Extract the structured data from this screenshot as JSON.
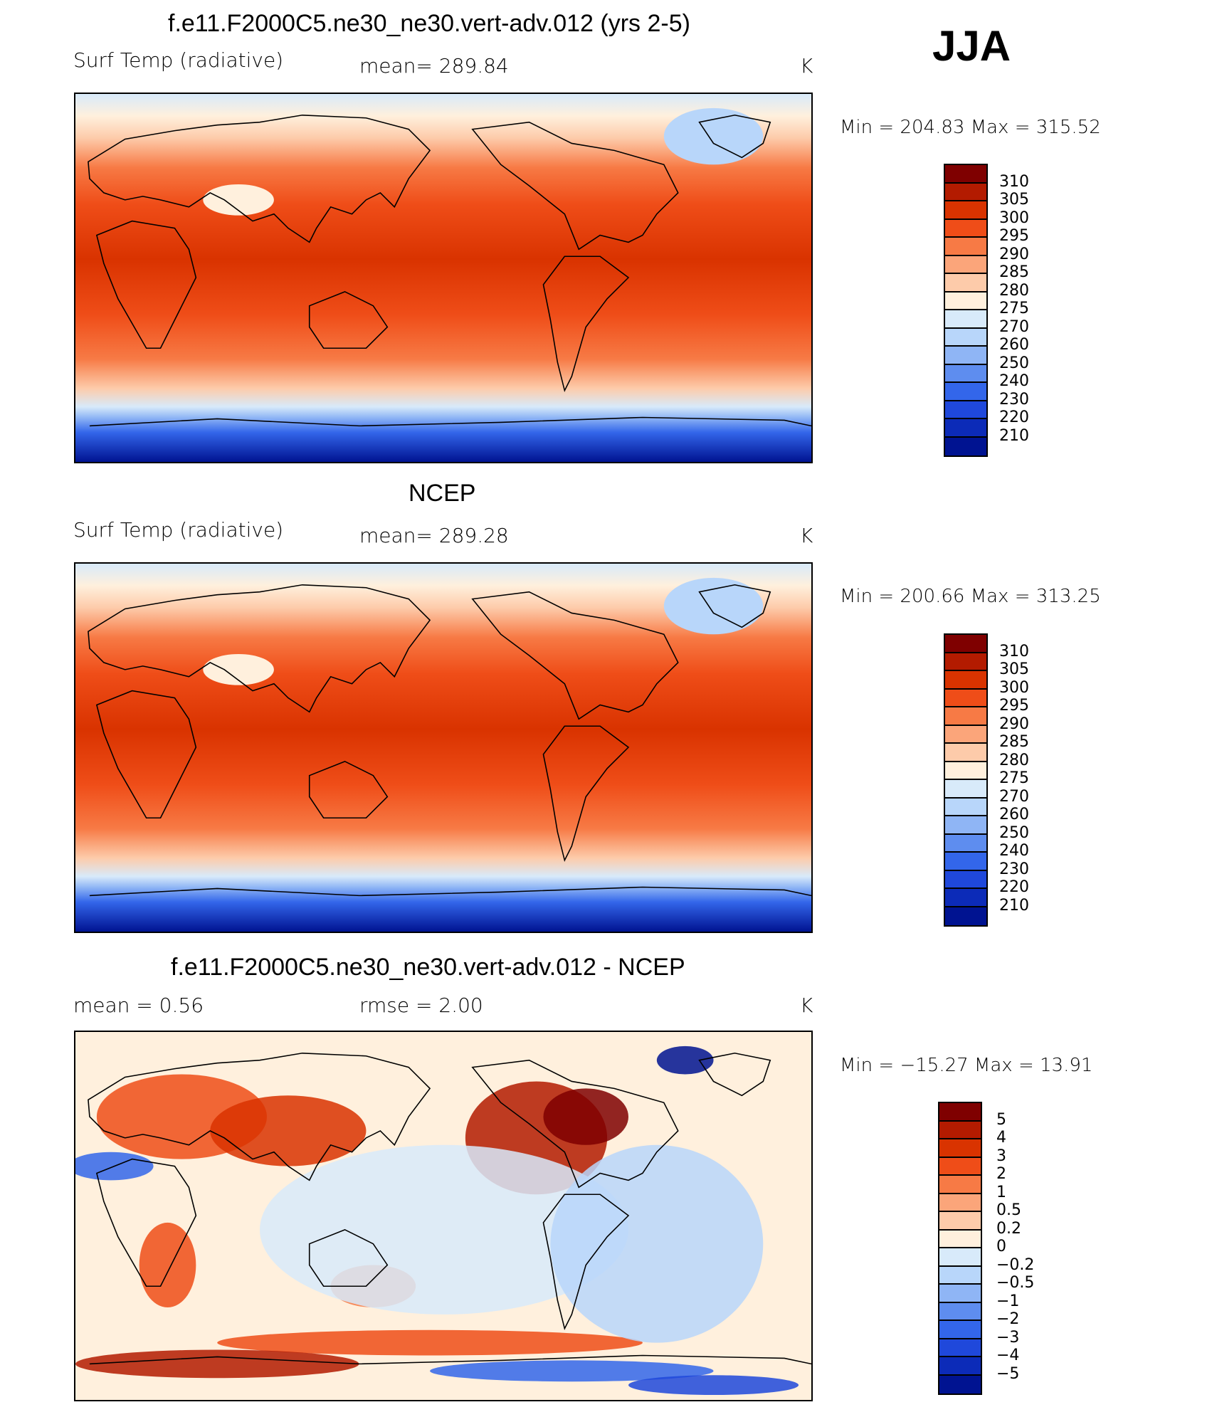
{
  "season": "JJA",
  "colors": {
    "temp": [
      "#7f0000",
      "#b31b00",
      "#d93300",
      "#ef4d18",
      "#f77a45",
      "#fba57a",
      "#fdcbaa",
      "#fff0dd",
      "#d8eafa",
      "#b8d6fa",
      "#8fb5f5",
      "#5e8def",
      "#3366ea",
      "#1f48db",
      "#0c2bb8",
      "#001391"
    ],
    "diff": [
      "#7f0000",
      "#b31b00",
      "#d93300",
      "#ef4d18",
      "#f77a45",
      "#fba57a",
      "#fdcbaa",
      "#fff0dd",
      "#d8eafa",
      "#b8d6fa",
      "#8fb5f5",
      "#5e8def",
      "#3366ea",
      "#1f48db",
      "#0c2bb8",
      "#001391"
    ]
  },
  "panels": [
    {
      "title": "f.e11.F2000C5.ne30_ne30.vert-adv.012 (yrs 2-5)",
      "left": "Surf Temp (radiative)",
      "middle": "mean=  289.84",
      "units": "K",
      "minmax": "Min  =  204.83  Max  =  315.52",
      "levels": [
        "310",
        "305",
        "300",
        "295",
        "290",
        "285",
        "280",
        "275",
        "270",
        "260",
        "250",
        "240",
        "230",
        "220",
        "210"
      ],
      "palette": "temp",
      "kind": "model"
    },
    {
      "title": "NCEP",
      "left": "Surf Temp (radiative)",
      "middle": "mean=  289.28",
      "units": "K",
      "minmax": "Min  =  200.66  Max  =  313.25",
      "levels": [
        "310",
        "305",
        "300",
        "295",
        "290",
        "285",
        "280",
        "275",
        "270",
        "260",
        "250",
        "240",
        "230",
        "220",
        "210"
      ],
      "palette": "temp",
      "kind": "obs"
    },
    {
      "title": "f.e11.F2000C5.ne30_ne30.vert-adv.012 - NCEP",
      "left": "mean  =     0.56",
      "middle": "rmse  =     2.00",
      "units": "K",
      "minmax": "Min  =  −15.27  Max  =     13.91",
      "levels": [
        "5",
        "4",
        "3",
        "2",
        "1",
        "0.5",
        "0.2",
        "0",
        "−0.2",
        "−0.5",
        "−1",
        "−2",
        "−3",
        "−4",
        "−5"
      ],
      "palette": "diff",
      "kind": "diff"
    }
  ]
}
